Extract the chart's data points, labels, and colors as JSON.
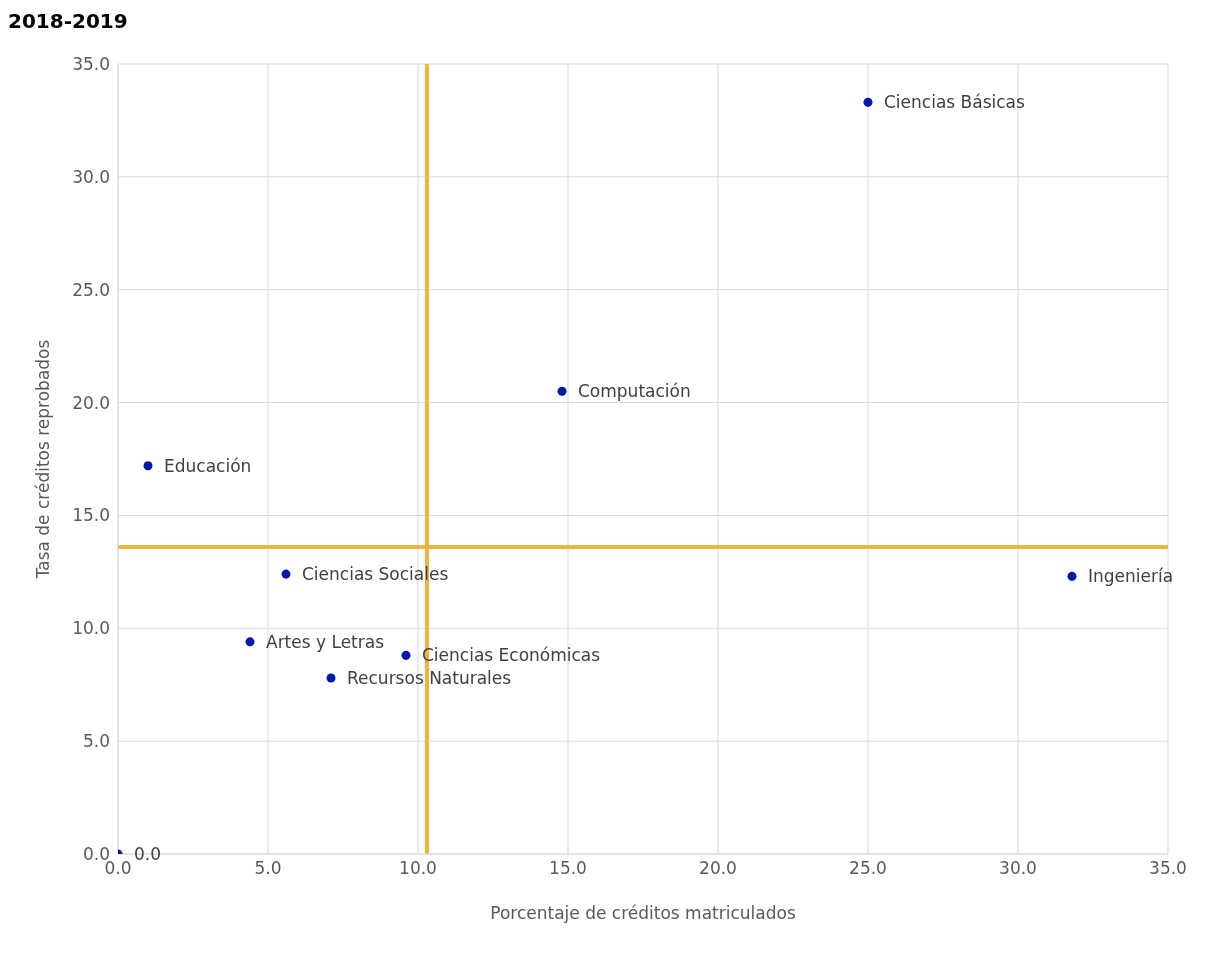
{
  "chart_data": {
    "type": "scatter",
    "title": "2018-2019",
    "xlabel": "Porcentaje de créditos matriculados",
    "ylabel": "Tasa de créditos reprobados",
    "x": [
      0,
      1.0,
      14.8,
      25.0,
      31.8,
      5.6,
      4.4,
      9.6,
      7.1
    ],
    "series": [
      {
        "color": "#0018a8",
        "values": [
          0,
          17.2,
          20.5,
          33.3,
          12.3,
          12.4,
          9.4,
          8.8,
          7.8
        ]
      }
    ],
    "xlim": [
      0,
      35
    ],
    "xticks": [
      {
        "value": 0,
        "label": "0.0"
      },
      {
        "value": 5,
        "label": "5.0"
      },
      {
        "value": 10,
        "label": "10.0"
      },
      {
        "value": 15,
        "label": "15.0"
      },
      {
        "value": 20,
        "label": "20.0"
      },
      {
        "value": 25,
        "label": "25.0"
      },
      {
        "value": 30,
        "label": "30.0"
      },
      {
        "value": 35,
        "label": "35.0"
      }
    ],
    "ylim": [
      0,
      35
    ],
    "yticks": [
      {
        "value": 0,
        "label": "0.0"
      },
      {
        "value": 5,
        "label": "5.0"
      },
      {
        "value": 10,
        "label": "10.0"
      },
      {
        "value": 15,
        "label": "15.0"
      },
      {
        "value": 20,
        "label": "20.0"
      },
      {
        "value": 25,
        "label": "25.0"
      },
      {
        "value": 30,
        "label": "30.0"
      },
      {
        "value": 35,
        "label": "35.0"
      }
    ],
    "grid": true,
    "marker": "circle",
    "ref_lines": [
      {
        "axis": "x",
        "value": 10.3,
        "color": "#f0b43c"
      },
      {
        "axis": "y",
        "value": 13.6,
        "color": "#f0b43c"
      }
    ],
    "annotations": [
      {
        "text": "0.0",
        "x": 0,
        "y": 0
      },
      {
        "text": "Educación",
        "x": 1.0,
        "y": 17.2
      },
      {
        "text": "Computación",
        "x": 14.8,
        "y": 20.5
      },
      {
        "text": "Ciencias Básicas",
        "x": 25.0,
        "y": 33.3
      },
      {
        "text": "Ingeniería",
        "x": 31.8,
        "y": 12.3
      },
      {
        "text": "Ciencias Sociales",
        "x": 5.6,
        "y": 12.4
      },
      {
        "text": "Artes y Letras",
        "x": 4.4,
        "y": 9.4
      },
      {
        "text": "Ciencias Económicas",
        "x": 9.6,
        "y": 8.8
      },
      {
        "text": "Recursos Naturales",
        "x": 7.1,
        "y": 7.8
      }
    ]
  }
}
